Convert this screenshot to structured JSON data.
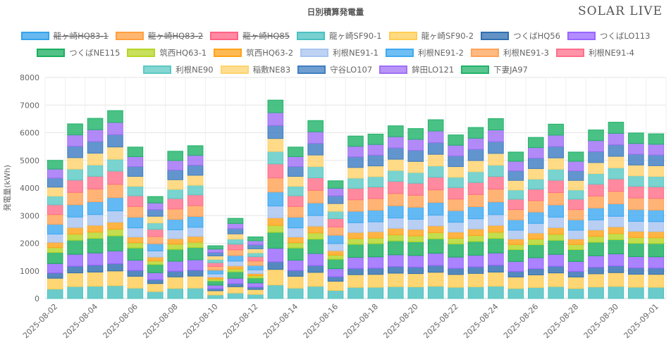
{
  "header": {
    "title": "日別積算発電量",
    "brand": "SOLAR LIVE"
  },
  "chart_data": {
    "type": "bar",
    "stacked": true,
    "title": "日別積算発電量",
    "xlabel": "",
    "ylabel": "発電量(kWh)",
    "ylim": [
      0,
      8000
    ],
    "yticks": [
      0,
      1000,
      2000,
      3000,
      4000,
      5000,
      6000,
      7000,
      8000
    ],
    "categories": [
      "2025-08-02",
      "2025-08-03",
      "2025-08-04",
      "2025-08-05",
      "2025-08-06",
      "2025-08-07",
      "2025-08-08",
      "2025-08-09",
      "2025-08-10",
      "2025-08-11",
      "2025-08-12",
      "2025-08-13",
      "2025-08-14",
      "2025-08-15",
      "2025-08-16",
      "2025-08-17",
      "2025-08-18",
      "2025-08-19",
      "2025-08-20",
      "2025-08-21",
      "2025-08-22",
      "2025-08-23",
      "2025-08-24",
      "2025-08-25",
      "2025-08-26",
      "2025-08-27",
      "2025-08-28",
      "2025-08-29",
      "2025-08-30",
      "2025-08-31",
      "2025-09-01"
    ],
    "xtick_labels": [
      "2025-08-02",
      "2025-08-04",
      "2025-08-06",
      "2025-08-08",
      "2025-08-10",
      "2025-08-12",
      "2025-08-14",
      "2025-08-16",
      "2025-08-18",
      "2025-08-20",
      "2025-08-22",
      "2025-08-24",
      "2025-08-26",
      "2025-08-28",
      "2025-08-30",
      "2025-09-01"
    ],
    "legend_rows": [
      [
        0,
        1,
        2,
        3,
        4,
        5,
        6
      ],
      [
        7,
        8,
        9,
        10,
        11,
        12,
        13
      ],
      [
        14,
        15,
        16,
        17,
        18
      ]
    ],
    "totals": [
      5000,
      6320,
      6520,
      6800,
      5480,
      3690,
      5330,
      5530,
      1910,
      2900,
      2230,
      7180,
      5480,
      6440,
      4260,
      5880,
      5950,
      6250,
      6150,
      6470,
      5920,
      6190,
      6510,
      5300,
      5830,
      6310,
      5300,
      6100,
      6380,
      5990,
      5960
    ],
    "series": [
      {
        "name": "龍ヶ崎HQ83-1",
        "color": "#36a2eb",
        "hidden": true,
        "weight": 0.0
      },
      {
        "name": "龍ヶ崎HQ83-2",
        "color": "#ff9f40",
        "hidden": true,
        "weight": 0.0
      },
      {
        "name": "龍ヶ崎HQ85",
        "color": "#ff6384",
        "hidden": true,
        "weight": 0.0
      },
      {
        "name": "龍ヶ崎SF90-1",
        "color": "#4bc0c0",
        "hidden": false,
        "weight": 0.063
      },
      {
        "name": "龍ヶ崎SF90-2",
        "color": "#ffcd56",
        "hidden": false,
        "weight": 0.072
      },
      {
        "name": "つくばHQ56",
        "color": "#2f6fb0",
        "hidden": false,
        "weight": 0.035
      },
      {
        "name": "つくばLO113",
        "color": "#9966ff",
        "hidden": false,
        "weight": 0.063
      },
      {
        "name": "つくばNE115",
        "color": "#1aae5e",
        "hidden": false,
        "weight": 0.074
      },
      {
        "name": "筑西HQ63-1",
        "color": "#b5d626",
        "hidden": false,
        "weight": 0.032
      },
      {
        "name": "筑西HQ63-2",
        "color": "#ffa31a",
        "hidden": false,
        "weight": 0.035
      },
      {
        "name": "利根NE91-1",
        "color": "#a8c4f0",
        "hidden": false,
        "weight": 0.055
      },
      {
        "name": "利根NE91-2",
        "color": "#3fa9f0",
        "hidden": false,
        "weight": 0.065
      },
      {
        "name": "利根NE91-3",
        "color": "#ffa358",
        "hidden": false,
        "weight": 0.065
      },
      {
        "name": "利根NE91-4",
        "color": "#ff6f8a",
        "hidden": false,
        "weight": 0.065
      },
      {
        "name": "利根NE90",
        "color": "#5cc9c4",
        "hidden": false,
        "weight": 0.058
      },
      {
        "name": "稲敷NE83",
        "color": "#ffd36e",
        "hidden": false,
        "weight": 0.06
      },
      {
        "name": "守谷LO107",
        "color": "#3f7ec2",
        "hidden": false,
        "weight": 0.06
      },
      {
        "name": "鉾田LO121",
        "color": "#a070f5",
        "hidden": false,
        "weight": 0.06
      },
      {
        "name": "下妻JA97",
        "color": "#22b36a",
        "hidden": false,
        "weight": 0.058
      }
    ]
  }
}
